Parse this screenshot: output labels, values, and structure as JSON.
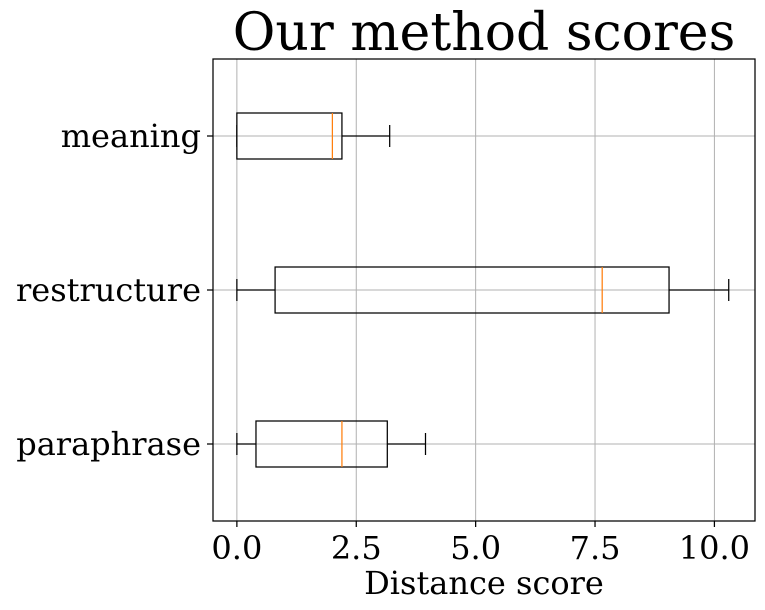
{
  "chart_data": {
    "type": "boxplot",
    "orientation": "horizontal",
    "title": "Our method scores",
    "xlabel": "Distance score",
    "ylabel": "",
    "xlim": [
      -0.5,
      10.85
    ],
    "x_ticks": [
      0.0,
      2.5,
      5.0,
      7.5,
      10.0
    ],
    "x_tick_labels": [
      "0.0",
      "2.5",
      "5.0",
      "7.5",
      "10.0"
    ],
    "grid": true,
    "categories": [
      "paraphrase",
      "restructure",
      "meaning"
    ],
    "boxes": [
      {
        "label": "paraphrase",
        "whisker_low": 0.0,
        "q1": 0.4,
        "median": 2.2,
        "q3": 3.15,
        "whisker_high": 3.95
      },
      {
        "label": "restructure",
        "whisker_low": 0.0,
        "q1": 0.8,
        "median": 7.65,
        "q3": 9.05,
        "whisker_high": 10.3
      },
      {
        "label": "meaning",
        "whisker_low": 0.0,
        "q1": 0.0,
        "median": 2.0,
        "q3": 2.2,
        "whisker_high": 3.2
      }
    ],
    "colors": {
      "box": "#000000",
      "median": "#ff7f0e",
      "grid": "#b0b0b0"
    }
  }
}
